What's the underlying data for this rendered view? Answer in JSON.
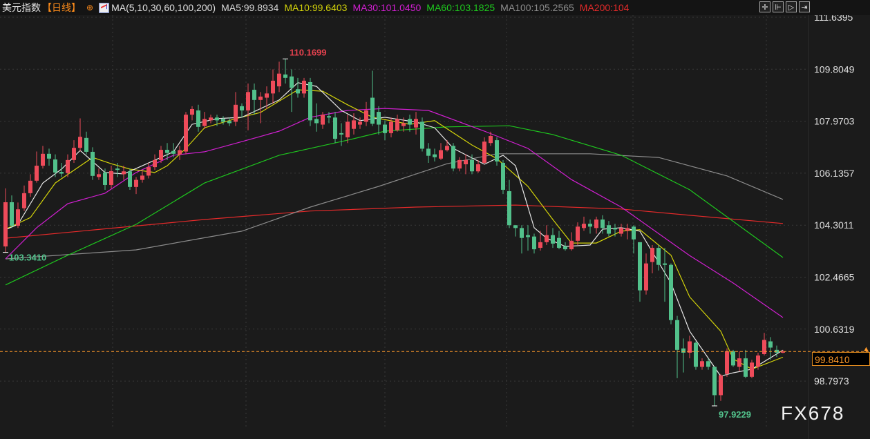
{
  "header": {
    "instrument": "美元指数",
    "period": "【日线】",
    "options_icon": "circle-plus-icon",
    "ma_icon": "ma-chart-icon",
    "ma_label": "MA(5,10,30,60,100,200)",
    "ma_values": [
      {
        "label": "MA5:99.8934",
        "color": "#d8d8d8"
      },
      {
        "label": "MA10:99.6403",
        "color": "#d4d40a"
      },
      {
        "label": "MA30:101.0450",
        "color": "#d21fd2"
      },
      {
        "label": "MA60:103.1825",
        "color": "#1ec81e"
      },
      {
        "label": "MA100:105.2565",
        "color": "#8c8c8c"
      },
      {
        "label": "MA200:104",
        "color": "#e52a2a"
      }
    ],
    "tools": [
      {
        "name": "crosshair-icon",
        "glyph": "✛"
      },
      {
        "name": "zoom-in-icon",
        "glyph": "⊩"
      },
      {
        "name": "play-icon",
        "glyph": "▷"
      },
      {
        "name": "jump-end-icon",
        "glyph": "⇥"
      }
    ]
  },
  "watermark": "FX678",
  "chart_data": {
    "type": "candlestick",
    "title": "美元指数",
    "ylim": [
      97.3,
      111.9
    ],
    "y_ticks": [
      "111.6395",
      "109.8049",
      "107.9703",
      "106.1357",
      "104.3011",
      "102.4665",
      "100.6319",
      "98.7973"
    ],
    "grid": true,
    "colors": {
      "up": "#ee4b5a",
      "down": "#52c18b",
      "current": "#ff9a2a"
    },
    "current_price": "99.8410",
    "annotations": [
      {
        "label": "110.1699",
        "index": 45,
        "value": 110.1699,
        "color": "#e8424f",
        "position": "above"
      },
      {
        "label": "103.3410",
        "index": 0,
        "value": 103.341,
        "color": "#52c18b",
        "position": "right"
      },
      {
        "label": "97.9229",
        "index": 114,
        "value": 97.9229,
        "color": "#52c18b",
        "position": "below"
      }
    ],
    "ohlc": [
      [
        103.55,
        105.6,
        103.34,
        105.11
      ],
      [
        105.11,
        105.35,
        104.2,
        104.28
      ],
      [
        104.28,
        105.1,
        104.2,
        104.86
      ],
      [
        104.9,
        105.7,
        104.8,
        105.43
      ],
      [
        105.43,
        106.1,
        105.3,
        105.87
      ],
      [
        105.87,
        106.9,
        105.8,
        106.4
      ],
      [
        106.4,
        107.1,
        106.3,
        106.82
      ],
      [
        106.82,
        107.0,
        106.4,
        106.65
      ],
      [
        106.62,
        106.8,
        106.0,
        106.16
      ],
      [
        106.18,
        106.5,
        106.0,
        106.12
      ],
      [
        106.14,
        106.8,
        106.0,
        106.6
      ],
      [
        106.6,
        107.3,
        106.5,
        107.03
      ],
      [
        107.03,
        108.07,
        106.9,
        107.42
      ],
      [
        107.38,
        107.6,
        106.8,
        106.89
      ],
      [
        106.89,
        107.05,
        105.9,
        106.04
      ],
      [
        106.0,
        106.3,
        105.9,
        106.1
      ],
      [
        106.16,
        106.3,
        105.55,
        105.72
      ],
      [
        105.72,
        106.4,
        105.6,
        106.21
      ],
      [
        106.3,
        106.5,
        106.0,
        106.25
      ],
      [
        106.1,
        106.4,
        105.9,
        106.2
      ],
      [
        106.2,
        106.3,
        105.55,
        105.65
      ],
      [
        105.65,
        106.0,
        105.4,
        105.9
      ],
      [
        105.9,
        106.2,
        105.8,
        106.05
      ],
      [
        106.05,
        106.5,
        105.95,
        106.35
      ],
      [
        106.35,
        106.8,
        106.25,
        106.6
      ],
      [
        106.6,
        107.1,
        106.5,
        106.96
      ],
      [
        106.96,
        107.2,
        106.6,
        106.85
      ],
      [
        106.92,
        107.2,
        106.7,
        106.82
      ],
      [
        106.8,
        107.1,
        106.6,
        106.95
      ],
      [
        106.9,
        108.3,
        106.8,
        108.2
      ],
      [
        108.2,
        108.5,
        108.0,
        108.4
      ],
      [
        108.35,
        108.55,
        107.6,
        107.77
      ],
      [
        107.8,
        108.3,
        107.7,
        108.05
      ],
      [
        108.0,
        108.2,
        107.9,
        108.1
      ],
      [
        108.1,
        108.2,
        107.8,
        108.0
      ],
      [
        108.05,
        108.15,
        107.85,
        107.95
      ],
      [
        107.98,
        108.1,
        107.8,
        107.9
      ],
      [
        107.95,
        109.0,
        107.8,
        108.55
      ],
      [
        108.5,
        108.6,
        108.1,
        108.35
      ],
      [
        108.35,
        109.3,
        107.65,
        109.0
      ],
      [
        109.08,
        109.3,
        108.2,
        108.72
      ],
      [
        108.72,
        109.0,
        107.9,
        108.84
      ],
      [
        108.8,
        109.2,
        108.4,
        108.95
      ],
      [
        108.95,
        109.8,
        108.6,
        109.4
      ],
      [
        109.2,
        110.07,
        109.0,
        109.65
      ],
      [
        109.62,
        110.1699,
        109.3,
        109.5
      ],
      [
        109.55,
        109.8,
        108.3,
        109.15
      ],
      [
        109.1,
        109.5,
        108.8,
        108.95
      ],
      [
        108.95,
        109.5,
        108.8,
        109.4
      ],
      [
        109.35,
        109.5,
        107.8,
        108.0
      ],
      [
        108.05,
        108.6,
        107.6,
        107.9
      ],
      [
        107.85,
        108.3,
        107.7,
        108.2
      ],
      [
        108.15,
        108.3,
        107.9,
        108.1
      ],
      [
        108.1,
        108.3,
        107.2,
        107.35
      ],
      [
        107.55,
        107.9,
        107.1,
        107.5
      ],
      [
        107.4,
        108.2,
        107.2,
        107.95
      ],
      [
        107.7,
        108.25,
        107.5,
        108.0
      ],
      [
        107.85,
        108.1,
        107.7,
        107.95
      ],
      [
        107.95,
        108.65,
        107.8,
        108.35
      ],
      [
        108.8,
        109.75,
        107.8,
        107.88
      ],
      [
        108.3,
        108.5,
        107.5,
        107.85
      ],
      [
        107.85,
        108.0,
        107.3,
        107.55
      ],
      [
        107.55,
        108.1,
        107.4,
        107.95
      ],
      [
        107.65,
        108.2,
        107.6,
        108.05
      ],
      [
        107.8,
        108.1,
        107.6,
        107.9
      ],
      [
        108.05,
        108.2,
        107.6,
        107.85
      ],
      [
        107.75,
        108.3,
        107.5,
        108.05
      ],
      [
        107.95,
        108.1,
        106.9,
        107.0
      ],
      [
        107.0,
        107.2,
        106.5,
        106.75
      ],
      [
        106.8,
        107.0,
        106.55,
        106.7
      ],
      [
        106.65,
        107.2,
        106.6,
        106.95
      ],
      [
        106.95,
        107.3,
        106.9,
        107.1
      ],
      [
        107.1,
        107.2,
        106.2,
        106.3
      ],
      [
        106.3,
        106.7,
        106.2,
        106.6
      ],
      [
        106.45,
        106.8,
        106.1,
        106.6
      ],
      [
        106.6,
        106.8,
        106.1,
        106.2
      ],
      [
        106.2,
        106.6,
        106.15,
        106.45
      ],
      [
        106.5,
        107.4,
        106.45,
        107.25
      ],
      [
        107.2,
        107.6,
        107.1,
        107.45
      ],
      [
        107.3,
        107.4,
        106.4,
        106.55
      ],
      [
        106.5,
        106.6,
        105.4,
        105.55
      ],
      [
        105.5,
        105.9,
        104.2,
        104.3
      ],
      [
        104.3,
        104.3,
        103.9,
        104.2
      ],
      [
        104.2,
        104.3,
        103.3,
        103.85
      ],
      [
        103.95,
        104.3,
        103.4,
        103.88
      ],
      [
        103.9,
        104.0,
        103.3,
        103.45
      ],
      [
        103.5,
        104.1,
        103.4,
        103.7
      ],
      [
        103.7,
        104.3,
        103.6,
        103.95
      ],
      [
        103.95,
        104.2,
        103.5,
        103.65
      ],
      [
        103.85,
        104.1,
        103.45,
        103.5
      ],
      [
        103.55,
        103.7,
        103.4,
        103.45
      ],
      [
        103.45,
        104.05,
        103.4,
        103.75
      ],
      [
        103.75,
        104.4,
        103.6,
        104.25
      ],
      [
        104.2,
        104.6,
        104.1,
        104.35
      ],
      [
        104.35,
        104.5,
        104.0,
        104.25
      ],
      [
        104.2,
        104.6,
        104.0,
        104.5
      ],
      [
        104.5,
        104.65,
        104.0,
        104.2
      ],
      [
        104.3,
        104.45,
        103.9,
        104.0
      ],
      [
        104.2,
        104.35,
        103.9,
        104.15
      ],
      [
        104.0,
        104.35,
        103.9,
        104.2
      ],
      [
        104.1,
        104.35,
        103.8,
        104.2
      ],
      [
        104.25,
        104.3,
        103.3,
        103.8
      ],
      [
        103.7,
        103.7,
        101.6,
        102.0
      ],
      [
        102.0,
        103.3,
        101.85,
        102.95
      ],
      [
        103.0,
        103.6,
        102.6,
        103.5
      ],
      [
        103.5,
        103.6,
        102.7,
        102.9
      ],
      [
        102.95,
        103.5,
        101.6,
        102.9
      ],
      [
        102.9,
        102.95,
        100.8,
        100.95
      ],
      [
        100.95,
        101.1,
        98.9,
        99.9
      ],
      [
        99.95,
        100.3,
        99.1,
        99.8
      ],
      [
        99.8,
        100.4,
        99.6,
        100.2
      ],
      [
        100.15,
        100.2,
        99.2,
        99.3
      ],
      [
        99.3,
        99.6,
        99.2,
        99.5
      ],
      [
        99.5,
        99.6,
        99.2,
        99.3
      ],
      [
        99.3,
        99.3,
        97.9229,
        98.3
      ],
      [
        98.3,
        99.05,
        98.1,
        99.0
      ],
      [
        99.05,
        99.95,
        98.95,
        99.85
      ],
      [
        99.85,
        99.9,
        99.3,
        99.35
      ],
      [
        99.3,
        99.85,
        99.15,
        99.6
      ],
      [
        99.6,
        99.9,
        98.9,
        98.95
      ],
      [
        98.95,
        99.55,
        98.9,
        99.45
      ],
      [
        99.3,
        99.8,
        99.2,
        99.7
      ],
      [
        99.75,
        100.5,
        99.7,
        100.25
      ],
      [
        100.2,
        100.35,
        99.55,
        99.98
      ],
      [
        99.9,
        100.05,
        99.65,
        99.8
      ],
      [
        99.8,
        99.9,
        99.78,
        99.841
      ]
    ],
    "moving_averages": [
      {
        "name": "MA200",
        "color": "#e52a2a",
        "points": [
          [
            0,
            103.84
          ],
          [
            32,
            104.5
          ],
          [
            49,
            104.8
          ],
          [
            66,
            104.94
          ],
          [
            82,
            105.01
          ],
          [
            99,
            104.87
          ],
          [
            110,
            104.65
          ],
          [
            125,
            104.36
          ]
        ]
      },
      {
        "name": "MA100",
        "color": "#8c8c8c",
        "points": [
          [
            0,
            103.11
          ],
          [
            21,
            103.43
          ],
          [
            38,
            104.09
          ],
          [
            49,
            104.94
          ],
          [
            60,
            105.67
          ],
          [
            71,
            106.47
          ],
          [
            79,
            106.82
          ],
          [
            94,
            106.82
          ],
          [
            105,
            106.69
          ],
          [
            116,
            106.04
          ],
          [
            125,
            105.21
          ]
        ]
      },
      {
        "name": "MA60",
        "color": "#1ec81e",
        "points": [
          [
            0,
            102.19
          ],
          [
            10,
            103.24
          ],
          [
            21,
            104.33
          ],
          [
            32,
            105.79
          ],
          [
            44,
            106.77
          ],
          [
            55,
            107.3
          ],
          [
            61,
            107.62
          ],
          [
            71,
            107.77
          ],
          [
            81,
            107.81
          ],
          [
            88,
            107.5
          ],
          [
            99,
            106.77
          ],
          [
            110,
            105.55
          ],
          [
            125,
            103.16
          ]
        ]
      },
      {
        "name": "MA30",
        "color": "#d21fd2",
        "points": [
          [
            0,
            103.11
          ],
          [
            5,
            104.21
          ],
          [
            10,
            105.06
          ],
          [
            16,
            105.43
          ],
          [
            21,
            106.16
          ],
          [
            27,
            106.77
          ],
          [
            32,
            106.89
          ],
          [
            38,
            107.25
          ],
          [
            44,
            107.62
          ],
          [
            49,
            108.11
          ],
          [
            55,
            108.35
          ],
          [
            61,
            108.42
          ],
          [
            68,
            108.35
          ],
          [
            77,
            107.62
          ],
          [
            84,
            107.01
          ],
          [
            91,
            105.91
          ],
          [
            99,
            104.94
          ],
          [
            110,
            103.23
          ],
          [
            117,
            102.26
          ],
          [
            125,
            101.04
          ]
        ]
      },
      {
        "name": "MA10",
        "color": "#d4d40a",
        "points": [
          [
            0,
            104.16
          ],
          [
            4,
            104.57
          ],
          [
            8,
            105.79
          ],
          [
            14,
            106.69
          ],
          [
            17,
            106.47
          ],
          [
            20,
            106.28
          ],
          [
            24,
            106.16
          ],
          [
            26,
            106.4
          ],
          [
            29,
            107.01
          ],
          [
            32,
            107.74
          ],
          [
            37,
            108.06
          ],
          [
            41,
            108.28
          ],
          [
            47,
            109.08
          ],
          [
            51,
            109.03
          ],
          [
            55,
            108.55
          ],
          [
            59,
            108.11
          ],
          [
            65,
            107.86
          ],
          [
            69,
            107.99
          ],
          [
            75,
            107.13
          ],
          [
            79,
            106.65
          ],
          [
            84,
            105.67
          ],
          [
            88,
            104.5
          ],
          [
            91,
            103.67
          ],
          [
            95,
            103.67
          ],
          [
            99,
            104.09
          ],
          [
            102,
            104.14
          ],
          [
            107,
            103.24
          ],
          [
            110,
            101.77
          ],
          [
            115,
            100.56
          ],
          [
            117,
            99.58
          ],
          [
            120,
            99.22
          ],
          [
            125,
            99.64
          ]
        ]
      },
      {
        "name": "MA5",
        "color": "#e8e8e8",
        "points": [
          [
            0,
            104.14
          ],
          [
            2,
            104.33
          ],
          [
            6,
            105.79
          ],
          [
            9,
            106.28
          ],
          [
            12,
            106.94
          ],
          [
            16,
            106.16
          ],
          [
            19,
            106.11
          ],
          [
            22,
            106.4
          ],
          [
            27,
            106.89
          ],
          [
            30,
            107.86
          ],
          [
            34,
            108.06
          ],
          [
            38,
            108.11
          ],
          [
            44,
            108.72
          ],
          [
            47,
            109.33
          ],
          [
            50,
            109.2
          ],
          [
            54,
            108.35
          ],
          [
            57,
            107.99
          ],
          [
            61,
            108.11
          ],
          [
            66,
            107.94
          ],
          [
            69,
            107.74
          ],
          [
            72,
            107.01
          ],
          [
            77,
            106.45
          ],
          [
            80,
            106.77
          ],
          [
            82,
            106.4
          ],
          [
            85,
            104.21
          ],
          [
            87,
            103.84
          ],
          [
            90,
            103.55
          ],
          [
            94,
            103.6
          ],
          [
            96,
            104.16
          ],
          [
            99,
            104.21
          ],
          [
            102,
            104.09
          ],
          [
            105,
            102.99
          ],
          [
            107,
            102.26
          ],
          [
            110,
            100.56
          ],
          [
            115,
            98.97
          ],
          [
            117,
            99.09
          ],
          [
            120,
            99.22
          ],
          [
            125,
            99.89
          ]
        ]
      }
    ]
  }
}
